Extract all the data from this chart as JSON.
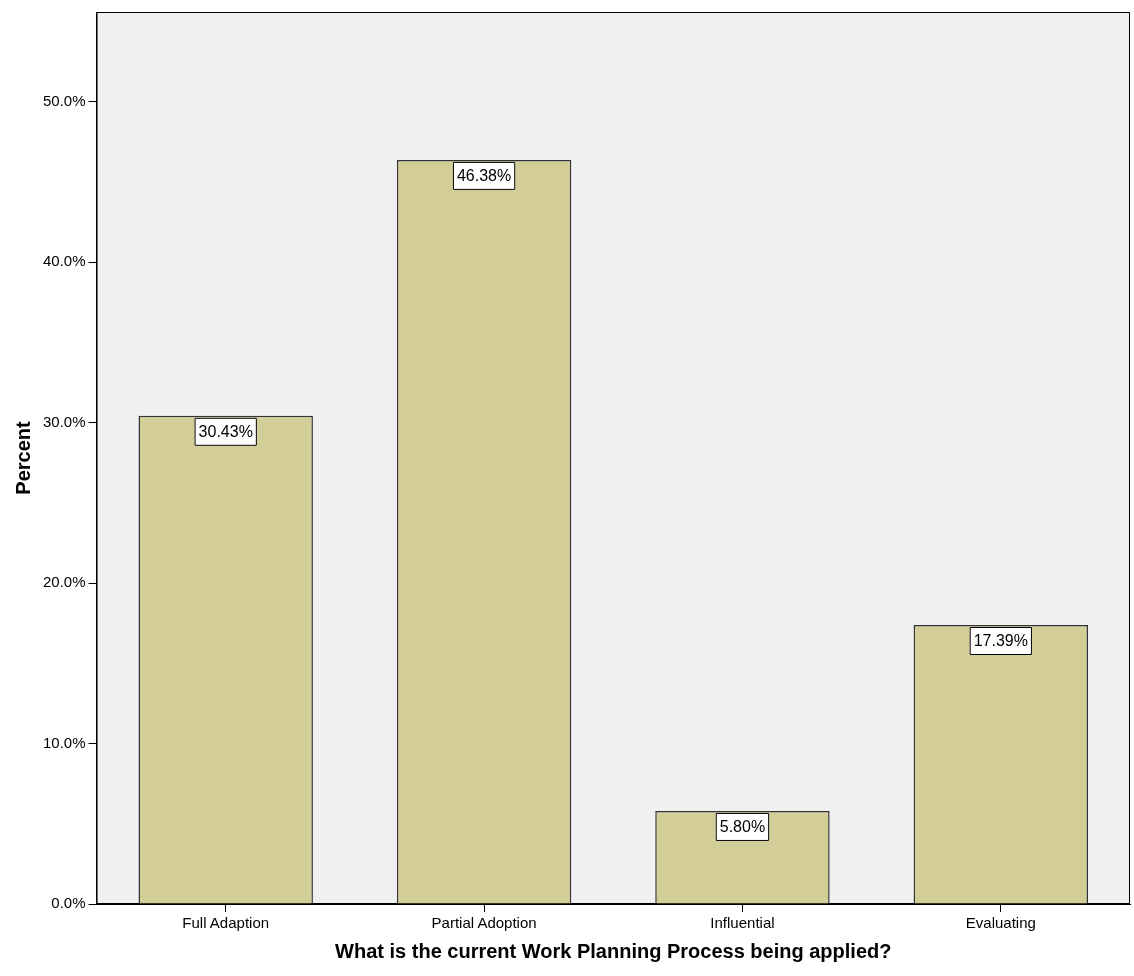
{
  "chart_data": {
    "type": "bar",
    "xlabel": "What is the current Work Planning Process being applied?",
    "ylabel": "Percent",
    "categories": [
      "Full Adaption",
      "Partial Adoption",
      "Influential",
      "Evaluating"
    ],
    "values": [
      30.43,
      46.38,
      5.8,
      17.39
    ],
    "value_labels": [
      "30.43%",
      "46.38%",
      "5.80%",
      "17.39%"
    ],
    "color": "#d3ce97",
    "ylim": [
      0,
      55.6
    ],
    "yticks": [
      {
        "value": 0,
        "label": "0.0%"
      },
      {
        "value": 10,
        "label": "10.0%"
      },
      {
        "value": 20,
        "label": "20.0%"
      },
      {
        "value": 30,
        "label": "30.0%"
      },
      {
        "value": 40,
        "label": "40.0%"
      },
      {
        "value": 50,
        "label": "50.0%"
      }
    ],
    "grid": false,
    "legend": false
  }
}
